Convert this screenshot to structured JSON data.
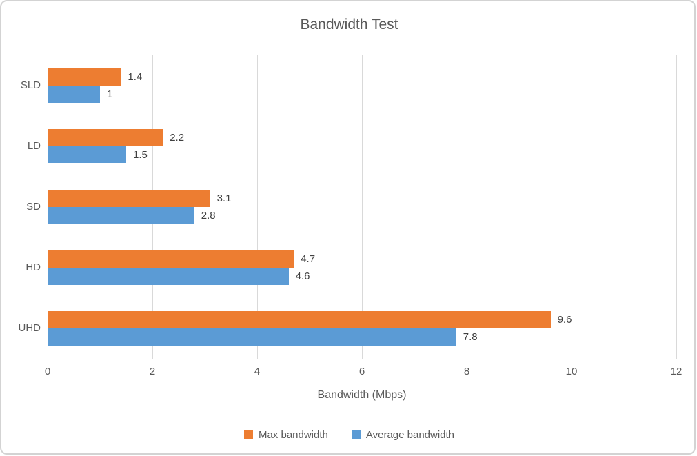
{
  "chart_data": {
    "type": "bar",
    "orientation": "horizontal",
    "title": "Bandwidth Test",
    "xlabel": "Bandwidth (Mbps)",
    "ylabel": "",
    "categories": [
      "SLD",
      "LD",
      "SD",
      "HD",
      "UHD"
    ],
    "series": [
      {
        "name": "Max bandwidth",
        "color": "#ed7d31",
        "values": [
          1.4,
          2.2,
          3.1,
          4.7,
          9.6
        ],
        "labels": [
          "1.4",
          "2.2",
          "3.1",
          "4.7",
          "9.6"
        ]
      },
      {
        "name": "Average bandwidth",
        "color": "#5b9bd5",
        "values": [
          1,
          1.5,
          2.8,
          4.6,
          7.8
        ],
        "labels": [
          "1",
          "1.5",
          "2.8",
          "4.6",
          "7.8"
        ]
      }
    ],
    "xlim": [
      0,
      12
    ],
    "xticks": [
      "0",
      "2",
      "4",
      "6",
      "8",
      "10",
      "12"
    ],
    "grid": "vertical-major",
    "legend_position": "bottom",
    "colors": {
      "max_series": "#ed7d31",
      "avg_series": "#5b9bd5",
      "gridline": "#d9d9d9",
      "axis_text": "#595959",
      "data_label_text": "#404040",
      "frame_border": "#d3d3d3",
      "background": "#ffffff"
    }
  }
}
